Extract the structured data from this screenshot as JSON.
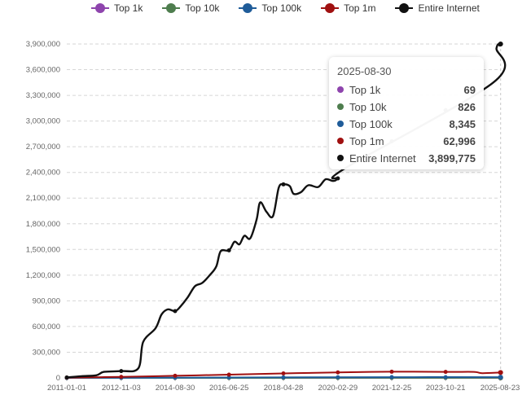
{
  "chart_data": {
    "type": "line",
    "title": "",
    "xlabel": "",
    "ylabel": "",
    "ylim": [
      0,
      3900000
    ],
    "yticks": [
      0,
      300000,
      600000,
      900000,
      1200000,
      1500000,
      1800000,
      2100000,
      2400000,
      2700000,
      3000000,
      3300000,
      3600000,
      3900000
    ],
    "ytick_labels": [
      "0",
      "300,000",
      "600,000",
      "900,000",
      "1,200,000",
      "1,500,000",
      "1,800,000",
      "2,100,000",
      "2,400,000",
      "2,700,000",
      "3,000,000",
      "3,300,000",
      "3,600,000",
      "3,900,000"
    ],
    "xlim": [
      "2011-01-01",
      "2025-08-23"
    ],
    "xtick_labels": [
      "2011-01-01",
      "2012-11-03",
      "2014-08-30",
      "2016-06-25",
      "2018-04-28",
      "2020-02-29",
      "2021-12-25",
      "2023-10-21",
      "2025-08-23"
    ],
    "grid": true,
    "legend_position": "top",
    "series": [
      {
        "name": "Top 1k",
        "color": "#8e44ad",
        "points": [
          [
            "2011-01-01",
            2
          ],
          [
            "2014-01-01",
            10
          ],
          [
            "2018-01-01",
            35
          ],
          [
            "2022-01-01",
            60
          ],
          [
            "2025-08-30",
            69
          ]
        ]
      },
      {
        "name": "Top 10k",
        "color": "#4e7d4e",
        "points": [
          [
            "2011-01-01",
            20
          ],
          [
            "2014-01-01",
            100
          ],
          [
            "2018-01-01",
            400
          ],
          [
            "2022-01-01",
            700
          ],
          [
            "2025-08-30",
            826
          ]
        ]
      },
      {
        "name": "Top 100k",
        "color": "#1f5c99",
        "points": [
          [
            "2011-01-01",
            300
          ],
          [
            "2014-01-01",
            2000
          ],
          [
            "2018-01-01",
            6000
          ],
          [
            "2022-01-01",
            9000
          ],
          [
            "2025-08-30",
            8345
          ]
        ]
      },
      {
        "name": "Top 1m",
        "color": "#a01010",
        "points": [
          [
            "2011-01-01",
            3000
          ],
          [
            "2012-11-03",
            12000
          ],
          [
            "2014-08-30",
            25000
          ],
          [
            "2016-06-25",
            38000
          ],
          [
            "2018-04-28",
            52000
          ],
          [
            "2020-02-29",
            64000
          ],
          [
            "2021-12-25",
            72000
          ],
          [
            "2023-10-21",
            70000
          ],
          [
            "2024-10-01",
            70000
          ],
          [
            "2025-01-15",
            55000
          ],
          [
            "2025-08-30",
            62996
          ]
        ]
      },
      {
        "name": "Entire Internet",
        "color": "#111111",
        "points": [
          [
            "2011-01-01",
            5000
          ],
          [
            "2011-07-01",
            20000
          ],
          [
            "2012-01-01",
            30000
          ],
          [
            "2012-04-01",
            70000
          ],
          [
            "2012-11-03",
            80000
          ],
          [
            "2013-06-01",
            110000
          ],
          [
            "2013-08-01",
            420000
          ],
          [
            "2014-01-01",
            580000
          ],
          [
            "2014-03-15",
            740000
          ],
          [
            "2014-06-01",
            800000
          ],
          [
            "2014-08-30",
            780000
          ],
          [
            "2014-11-01",
            830000
          ],
          [
            "2015-02-01",
            940000
          ],
          [
            "2015-05-01",
            1070000
          ],
          [
            "2015-08-01",
            1110000
          ],
          [
            "2015-11-01",
            1200000
          ],
          [
            "2016-01-20",
            1300000
          ],
          [
            "2016-03-15",
            1480000
          ],
          [
            "2016-06-25",
            1490000
          ],
          [
            "2016-09-01",
            1590000
          ],
          [
            "2016-11-01",
            1560000
          ],
          [
            "2017-01-01",
            1660000
          ],
          [
            "2017-03-15",
            1630000
          ],
          [
            "2017-06-01",
            1850000
          ],
          [
            "2017-07-15",
            2050000
          ],
          [
            "2017-10-01",
            1940000
          ],
          [
            "2017-12-20",
            1890000
          ],
          [
            "2018-03-01",
            2220000
          ],
          [
            "2018-04-28",
            2260000
          ],
          [
            "2018-07-15",
            2240000
          ],
          [
            "2018-09-01",
            2150000
          ],
          [
            "2018-12-01",
            2170000
          ],
          [
            "2019-03-01",
            2250000
          ],
          [
            "2019-07-01",
            2230000
          ],
          [
            "2019-10-01",
            2320000
          ],
          [
            "2020-01-01",
            2300000
          ],
          [
            "2020-02-29",
            2330000
          ],
          [
            "2020-06-01",
            2450000
          ],
          [
            "2025-06-01",
            3450000
          ],
          [
            "2025-07-10",
            3850000
          ],
          [
            "2025-08-30",
            3899775
          ]
        ]
      }
    ],
    "tooltip": {
      "date": "2025-08-30",
      "rows": [
        {
          "name": "Top 1k",
          "value": "69",
          "color": "#8e44ad"
        },
        {
          "name": "Top 10k",
          "value": "826",
          "color": "#4e7d4e"
        },
        {
          "name": "Top 100k",
          "value": "8,345",
          "color": "#1f5c99"
        },
        {
          "name": "Top 1m",
          "value": "62,996",
          "color": "#a01010"
        },
        {
          "name": "Entire Internet",
          "value": "3,899,775",
          "color": "#111111"
        }
      ]
    }
  }
}
